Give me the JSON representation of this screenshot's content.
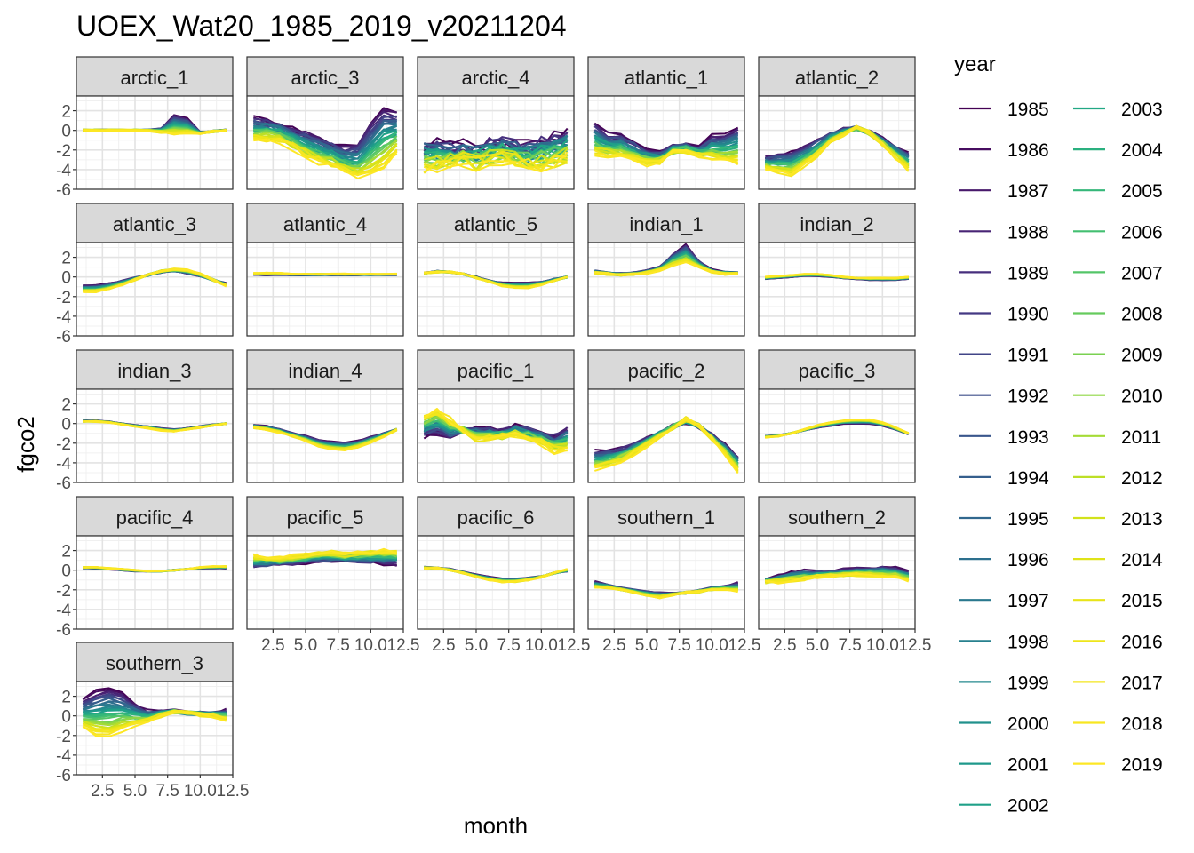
{
  "chart_data": {
    "type": "line",
    "title": "UOEX_Wat20_1985_2019_v20211204",
    "xlabel": "month",
    "ylabel": "fgco2",
    "xlim": [
      0.5,
      12.5
    ],
    "ylim": [
      -6,
      3.5
    ],
    "x_ticks": [
      "2.5",
      "5.0",
      "7.5",
      "10.0",
      "12.5"
    ],
    "y_ticks": [
      "2",
      "0",
      "-2",
      "-4",
      "-6"
    ],
    "grid": true,
    "legend_title": "year",
    "legend_position": "right",
    "months": [
      1,
      2,
      3,
      4,
      5,
      6,
      7,
      8,
      9,
      10,
      11,
      12
    ],
    "years": [
      "1985",
      "1986",
      "1987",
      "1988",
      "1989",
      "1990",
      "1991",
      "1992",
      "1993",
      "1994",
      "1995",
      "1996",
      "1997",
      "1998",
      "1999",
      "2000",
      "2001",
      "2002",
      "2003",
      "2004",
      "2005",
      "2006",
      "2007",
      "2008",
      "2009",
      "2010",
      "2011",
      "2012",
      "2013",
      "2014",
      "2015",
      "2016",
      "2017",
      "2018",
      "2019"
    ],
    "year_colors": [
      "#440154",
      "#470d60",
      "#48196b",
      "#482475",
      "#472f7d",
      "#443983",
      "#414487",
      "#3d4e8a",
      "#39568c",
      "#355f8d",
      "#31688e",
      "#2d708e",
      "#2a788e",
      "#27808e",
      "#23888e",
      "#21918c",
      "#1f988b",
      "#1fa088",
      "#22a884",
      "#2ab07f",
      "#35b779",
      "#43bf71",
      "#54c568",
      "#66cb5d",
      "#7ad151",
      "#8fd744",
      "#a5db36",
      "#bddf26",
      "#d2e21b",
      "#dfe318",
      "#e8e419",
      "#eee51a",
      "#f3e61d",
      "#f8e621",
      "#fde725"
    ],
    "panels": [
      {
        "name": "arctic_1",
        "early": [
          0,
          0,
          0,
          0,
          0,
          0,
          0.2,
          1.6,
          1.2,
          -0.2,
          -0.1,
          0
        ],
        "late": [
          0,
          0,
          0,
          0,
          0,
          0,
          -0.2,
          -0.4,
          -0.3,
          -0.3,
          -0.1,
          0
        ],
        "noise": 0.1
      },
      {
        "name": "arctic_3",
        "early": [
          1.2,
          1.0,
          0.7,
          0.2,
          -0.3,
          -0.8,
          -1.3,
          -1.8,
          -1.5,
          0.8,
          2.3,
          1.8
        ],
        "late": [
          -1.0,
          -0.9,
          -1.2,
          -1.8,
          -2.6,
          -3.2,
          -3.6,
          -4.3,
          -4.8,
          -4.6,
          -3.8,
          -2.2
        ],
        "noise": 0.35
      },
      {
        "name": "arctic_4",
        "early": [
          -1.4,
          -1.5,
          -1.7,
          -1.6,
          -1.8,
          -1.3,
          -1.2,
          -1.4,
          -1.6,
          -1.0,
          -0.7,
          -0.3
        ],
        "late": [
          -4.0,
          -3.8,
          -3.4,
          -3.2,
          -3.6,
          -3.2,
          -3.0,
          -3.3,
          -3.6,
          -3.6,
          -3.3,
          -3.0
        ],
        "noise": 0.8
      },
      {
        "name": "atlantic_1",
        "early": [
          0.7,
          -0.4,
          -0.5,
          -1.2,
          -2.0,
          -2.4,
          -1.6,
          -1.5,
          -1.8,
          -0.6,
          -0.5,
          0.3
        ],
        "late": [
          -2.5,
          -2.6,
          -2.6,
          -3.0,
          -3.4,
          -3.2,
          -2.3,
          -2.2,
          -2.6,
          -2.9,
          -3.0,
          -3.3
        ],
        "noise": 0.3
      },
      {
        "name": "atlantic_2",
        "early": [
          -2.8,
          -2.5,
          -2.2,
          -1.7,
          -1.0,
          -0.3,
          0.1,
          0.2,
          -0.2,
          -0.9,
          -1.6,
          -2.4
        ],
        "late": [
          -3.9,
          -4.2,
          -4.5,
          -3.6,
          -2.6,
          -1.3,
          -0.4,
          0.3,
          -0.3,
          -1.4,
          -2.8,
          -4.0
        ],
        "noise": 0.25
      },
      {
        "name": "atlantic_3",
        "early": [
          -0.9,
          -0.9,
          -0.7,
          -0.4,
          -0.1,
          0.2,
          0.5,
          0.6,
          0.4,
          0.1,
          -0.3,
          -0.7
        ],
        "late": [
          -1.5,
          -1.5,
          -1.2,
          -0.8,
          -0.3,
          0.2,
          0.6,
          0.8,
          0.7,
          0.3,
          -0.3,
          -0.9
        ],
        "noise": 0.1
      },
      {
        "name": "atlantic_4",
        "early": [
          0.2,
          0.2,
          0.2,
          0.2,
          0.2,
          0.2,
          0.2,
          0.2,
          0.2,
          0.2,
          0.2,
          0.2
        ],
        "late": [
          0.4,
          0.4,
          0.4,
          0.3,
          0.3,
          0.3,
          0.3,
          0.3,
          0.3,
          0.3,
          0.3,
          0.3
        ],
        "noise": 0.05
      },
      {
        "name": "atlantic_5",
        "early": [
          0.4,
          0.6,
          0.5,
          0.3,
          0.0,
          -0.4,
          -0.6,
          -0.6,
          -0.6,
          -0.5,
          -0.2,
          0.0
        ],
        "late": [
          0.4,
          0.5,
          0.5,
          0.3,
          -0.1,
          -0.5,
          -0.9,
          -1.1,
          -1.1,
          -0.8,
          -0.4,
          0.0
        ],
        "noise": 0.08
      },
      {
        "name": "indian_1",
        "early": [
          0.6,
          0.4,
          0.3,
          0.4,
          0.6,
          1.0,
          2.3,
          3.3,
          1.6,
          0.7,
          0.5,
          0.4
        ],
        "late": [
          0.4,
          0.3,
          0.2,
          0.3,
          0.4,
          0.7,
          1.2,
          1.5,
          1.0,
          0.5,
          0.3,
          0.3
        ],
        "noise": 0.12
      },
      {
        "name": "indian_2",
        "early": [
          -0.2,
          -0.1,
          0.0,
          0.1,
          0.1,
          0.0,
          -0.1,
          -0.2,
          -0.3,
          -0.3,
          -0.3,
          -0.2
        ],
        "late": [
          0.0,
          0.1,
          0.2,
          0.3,
          0.3,
          0.2,
          0.0,
          -0.1,
          -0.1,
          -0.1,
          -0.1,
          0.0
        ],
        "noise": 0.04
      },
      {
        "name": "indian_3",
        "early": [
          0.3,
          0.3,
          0.2,
          0.0,
          -0.2,
          -0.3,
          -0.5,
          -0.6,
          -0.5,
          -0.3,
          -0.1,
          0.0
        ],
        "late": [
          0.2,
          0.2,
          0.1,
          -0.1,
          -0.3,
          -0.5,
          -0.7,
          -0.8,
          -0.6,
          -0.4,
          -0.2,
          0.0
        ],
        "noise": 0.06
      },
      {
        "name": "indian_4",
        "early": [
          -0.2,
          -0.3,
          -0.6,
          -1.0,
          -1.3,
          -1.7,
          -1.9,
          -2.0,
          -1.8,
          -1.4,
          -1.0,
          -0.6
        ],
        "late": [
          -0.4,
          -0.6,
          -0.9,
          -1.3,
          -1.8,
          -2.3,
          -2.6,
          -2.7,
          -2.4,
          -1.9,
          -1.3,
          -0.6
        ],
        "noise": 0.1
      },
      {
        "name": "pacific_1",
        "early": [
          -1.3,
          -1.0,
          -1.4,
          -0.8,
          -0.5,
          -0.6,
          -0.8,
          -0.3,
          -0.6,
          -0.9,
          -1.2,
          -0.5
        ],
        "late": [
          0.8,
          1.4,
          0.4,
          -0.6,
          -1.7,
          -1.6,
          -1.4,
          -1.1,
          -1.5,
          -2.0,
          -2.8,
          -2.6
        ],
        "noise": 0.35
      },
      {
        "name": "pacific_2",
        "early": [
          -2.9,
          -2.8,
          -2.6,
          -2.1,
          -1.5,
          -0.9,
          -0.3,
          0.1,
          -0.3,
          -1.2,
          -2.2,
          -3.3
        ],
        "late": [
          -4.6,
          -4.2,
          -3.8,
          -3.1,
          -2.2,
          -1.3,
          -0.4,
          0.5,
          -0.2,
          -1.5,
          -3.0,
          -4.9
        ],
        "noise": 0.25
      },
      {
        "name": "pacific_3",
        "early": [
          -1.3,
          -1.2,
          -1.0,
          -0.7,
          -0.4,
          -0.2,
          0.0,
          0.0,
          0.0,
          -0.2,
          -0.6,
          -1.1
        ],
        "late": [
          -1.4,
          -1.3,
          -1.0,
          -0.6,
          -0.2,
          0.1,
          0.3,
          0.4,
          0.4,
          0.1,
          -0.4,
          -1.0
        ],
        "noise": 0.06
      },
      {
        "name": "pacific_4",
        "early": [
          0.2,
          0.2,
          0.1,
          0.0,
          -0.1,
          -0.1,
          -0.1,
          0.0,
          0.1,
          0.2,
          0.2,
          0.2
        ],
        "late": [
          0.3,
          0.3,
          0.2,
          0.1,
          0.0,
          -0.1,
          -0.1,
          0.0,
          0.1,
          0.3,
          0.4,
          0.4
        ],
        "noise": 0.05
      },
      {
        "name": "pacific_5",
        "early": [
          0.3,
          0.5,
          0.6,
          0.7,
          0.8,
          0.9,
          1.0,
          0.9,
          0.9,
          0.8,
          0.7,
          0.6
        ],
        "late": [
          1.5,
          1.3,
          1.2,
          1.4,
          1.6,
          1.8,
          1.9,
          1.7,
          1.8,
          1.9,
          2.0,
          1.9
        ],
        "noise": 0.25
      },
      {
        "name": "pacific_6",
        "early": [
          0.3,
          0.2,
          0.1,
          -0.2,
          -0.5,
          -0.7,
          -0.9,
          -0.9,
          -0.8,
          -0.6,
          -0.3,
          -0.1
        ],
        "late": [
          0.2,
          0.2,
          0.0,
          -0.3,
          -0.7,
          -1.0,
          -1.2,
          -1.2,
          -1.0,
          -0.7,
          -0.3,
          0.1
        ],
        "noise": 0.08
      },
      {
        "name": "southern_1",
        "early": [
          -1.2,
          -1.5,
          -1.8,
          -2.0,
          -2.2,
          -2.3,
          -2.4,
          -2.3,
          -2.1,
          -1.8,
          -1.6,
          -1.3
        ],
        "late": [
          -1.8,
          -1.8,
          -2.0,
          -2.3,
          -2.6,
          -2.8,
          -2.5,
          -2.3,
          -2.2,
          -2.0,
          -2.0,
          -2.2
        ],
        "noise": 0.12
      },
      {
        "name": "southern_2",
        "early": [
          -1.0,
          -0.6,
          -0.2,
          -0.1,
          -0.2,
          -0.2,
          0.0,
          0.1,
          0.1,
          0.3,
          0.2,
          -0.2
        ],
        "late": [
          -1.2,
          -1.2,
          -1.1,
          -0.9,
          -0.7,
          -0.6,
          -0.5,
          -0.5,
          -0.5,
          -0.6,
          -0.7,
          -1.1
        ],
        "noise": 0.2
      },
      {
        "name": "southern_3",
        "early": [
          1.6,
          2.5,
          3.0,
          2.4,
          1.2,
          0.5,
          0.5,
          0.5,
          0.3,
          0.3,
          0.3,
          0.6
        ],
        "late": [
          -1.2,
          -1.9,
          -2.1,
          -1.5,
          -0.9,
          -0.6,
          0.0,
          0.4,
          0.3,
          0.1,
          0.0,
          -0.4
        ],
        "noise": 0.2
      }
    ]
  }
}
